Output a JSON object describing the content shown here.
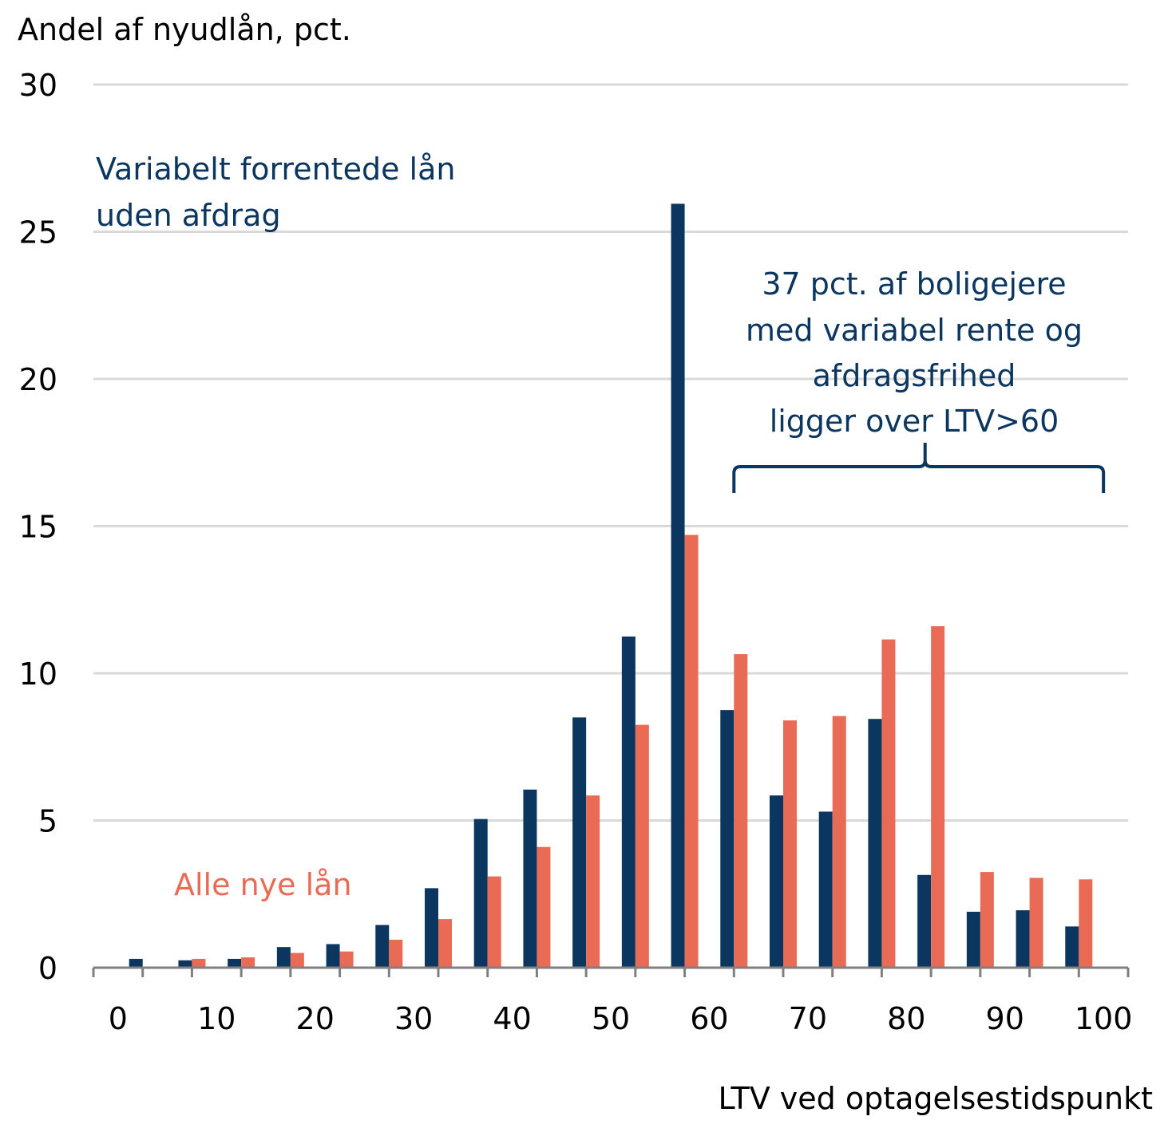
{
  "chart_data": {
    "type": "bar",
    "ylabel": "Andel af nyudlån, pct.",
    "xlabel": "LTV ved optagelsestidspunkt",
    "ylim": [
      0,
      30
    ],
    "yticks": [
      0,
      5,
      10,
      15,
      20,
      25,
      30
    ],
    "xticks": [
      "0",
      "10",
      "20",
      "30",
      "40",
      "50",
      "60",
      "70",
      "80",
      "90",
      "100"
    ],
    "grid": true,
    "categories": [
      "0-5",
      "5-10",
      "10-15",
      "15-20",
      "20-25",
      "25-30",
      "30-35",
      "35-40",
      "40-45",
      "45-50",
      "50-55",
      "55-60",
      "60-65",
      "65-70",
      "70-75",
      "75-80",
      "80-85",
      "85-90",
      "90-95",
      "95-100"
    ],
    "series": [
      {
        "name": "Variabelt forrentede lån uden afdrag",
        "color": "#0b3660",
        "values": [
          0.3,
          0.25,
          0.3,
          0.7,
          0.8,
          1.45,
          2.7,
          5.05,
          6.05,
          8.5,
          11.25,
          25.95,
          8.75,
          5.85,
          5.3,
          8.45,
          3.15,
          1.9,
          1.95,
          1.4
        ]
      },
      {
        "name": "Alle nye lån",
        "color": "#e96b56",
        "values": [
          0.0,
          0.3,
          0.35,
          0.5,
          0.55,
          0.95,
          1.65,
          3.1,
          4.1,
          5.85,
          8.25,
          14.7,
          10.65,
          8.4,
          8.55,
          11.15,
          11.6,
          3.25,
          3.05,
          3.0
        ]
      }
    ],
    "annotations": {
      "bracket_text": [
        "37 pct. af boligejere",
        "med variabel rente og",
        "afdragsfrihed",
        "ligger over LTV>60"
      ],
      "bracket_range": [
        62.5,
        100
      ]
    },
    "style": {
      "grid_color": "#d9d9d9",
      "axis_color": "#808080",
      "annotation_color": "#0b3660"
    }
  }
}
